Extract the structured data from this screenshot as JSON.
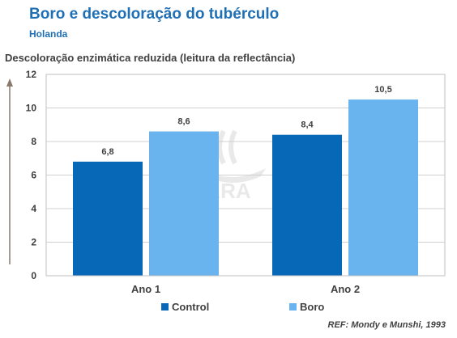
{
  "header": {
    "title": "Boro e descoloração do tubérculo",
    "subtitle": "Holanda"
  },
  "reference": "REF: Mondy e Munshi, 1993",
  "watermark_logo": "YARA",
  "colors": {
    "control": "#0868b8",
    "boro": "#69b3ee",
    "title": "#1f6fb5",
    "grid": "#d0d0d0",
    "arrow": "#8a7a6c"
  },
  "chart_data": {
    "type": "bar",
    "title": "",
    "ylabel": "Descoloração enzimática reduzida (leitura da reflectância)",
    "xlabel": "",
    "categories": [
      "Ano 1",
      "Ano 2"
    ],
    "series": [
      {
        "name": "Control",
        "values": [
          6.8,
          8.4
        ],
        "labels": [
          "6,8",
          "8,4"
        ]
      },
      {
        "name": "Boro",
        "values": [
          8.6,
          10.5
        ],
        "labels": [
          "8,6",
          "10,5"
        ]
      }
    ],
    "ylim": [
      0,
      12
    ],
    "yticks": [
      0,
      2,
      4,
      6,
      8,
      10,
      12
    ],
    "grid": true,
    "legend_position": "bottom"
  }
}
